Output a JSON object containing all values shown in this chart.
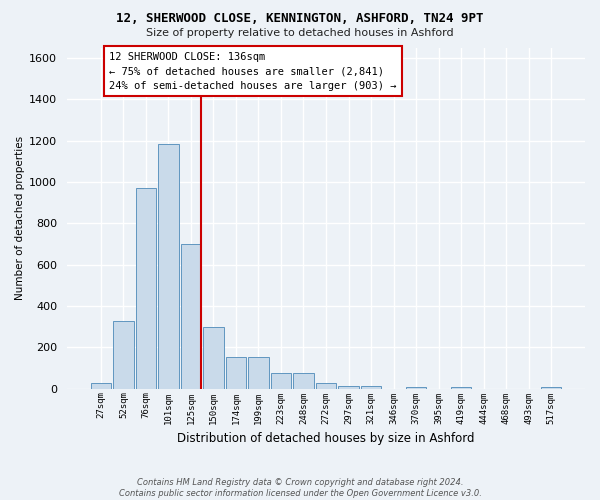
{
  "title1": "12, SHERWOOD CLOSE, KENNINGTON, ASHFORD, TN24 9PT",
  "title2": "Size of property relative to detached houses in Ashford",
  "xlabel": "Distribution of detached houses by size in Ashford",
  "ylabel": "Number of detached properties",
  "bar_labels": [
    "27sqm",
    "52sqm",
    "76sqm",
    "101sqm",
    "125sqm",
    "150sqm",
    "174sqm",
    "199sqm",
    "223sqm",
    "248sqm",
    "272sqm",
    "297sqm",
    "321sqm",
    "346sqm",
    "370sqm",
    "395sqm",
    "419sqm",
    "444sqm",
    "468sqm",
    "493sqm",
    "517sqm"
  ],
  "bar_values": [
    25,
    325,
    970,
    1185,
    700,
    300,
    155,
    155,
    75,
    75,
    25,
    15,
    15,
    0,
    10,
    0,
    10,
    0,
    0,
    0,
    10
  ],
  "bar_color": "#c9daea",
  "bar_edge_color": "#6096c0",
  "vline_color": "#cc0000",
  "annotation_text": "12 SHERWOOD CLOSE: 136sqm\n← 75% of detached houses are smaller (2,841)\n24% of semi-detached houses are larger (903) →",
  "annotation_box_color": "#ffffff",
  "annotation_box_edge": "#cc0000",
  "ylim": [
    0,
    1650
  ],
  "yticks": [
    0,
    200,
    400,
    600,
    800,
    1000,
    1200,
    1400,
    1600
  ],
  "bg_color": "#edf2f7",
  "grid_color": "#ffffff",
  "footer": "Contains HM Land Registry data © Crown copyright and database right 2024.\nContains public sector information licensed under the Open Government Licence v3.0."
}
